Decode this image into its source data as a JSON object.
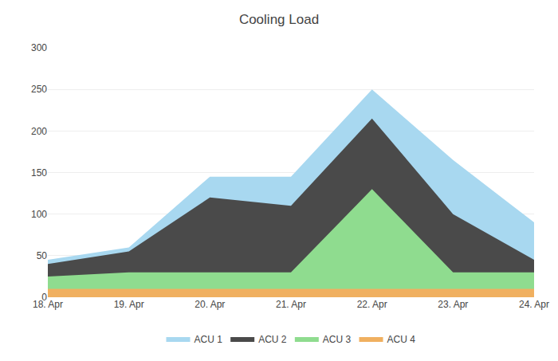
{
  "chart_data": {
    "type": "area",
    "title": "Cooling Load",
    "categories": [
      "18. Apr",
      "19. Apr",
      "20. Apr",
      "21. Apr",
      "22. Apr",
      "23. Apr",
      "24. Apr"
    ],
    "series": [
      {
        "name": "ACU 1",
        "color": "#a8d8f0",
        "values": [
          45,
          60,
          145,
          145,
          250,
          165,
          90
        ]
      },
      {
        "name": "ACU 2",
        "color": "#4a4a4a",
        "values": [
          40,
          55,
          120,
          110,
          215,
          100,
          45
        ]
      },
      {
        "name": "ACU 3",
        "color": "#8fdc8f",
        "values": [
          25,
          30,
          30,
          30,
          130,
          30,
          30
        ]
      },
      {
        "name": "ACU 4",
        "color": "#f0b060",
        "values": [
          10,
          10,
          10,
          10,
          10,
          10,
          10
        ]
      }
    ],
    "ylim": [
      0,
      300
    ],
    "yticks": [
      0,
      50,
      100,
      150,
      200,
      250,
      300
    ],
    "grid": true,
    "legend": "bottom"
  }
}
